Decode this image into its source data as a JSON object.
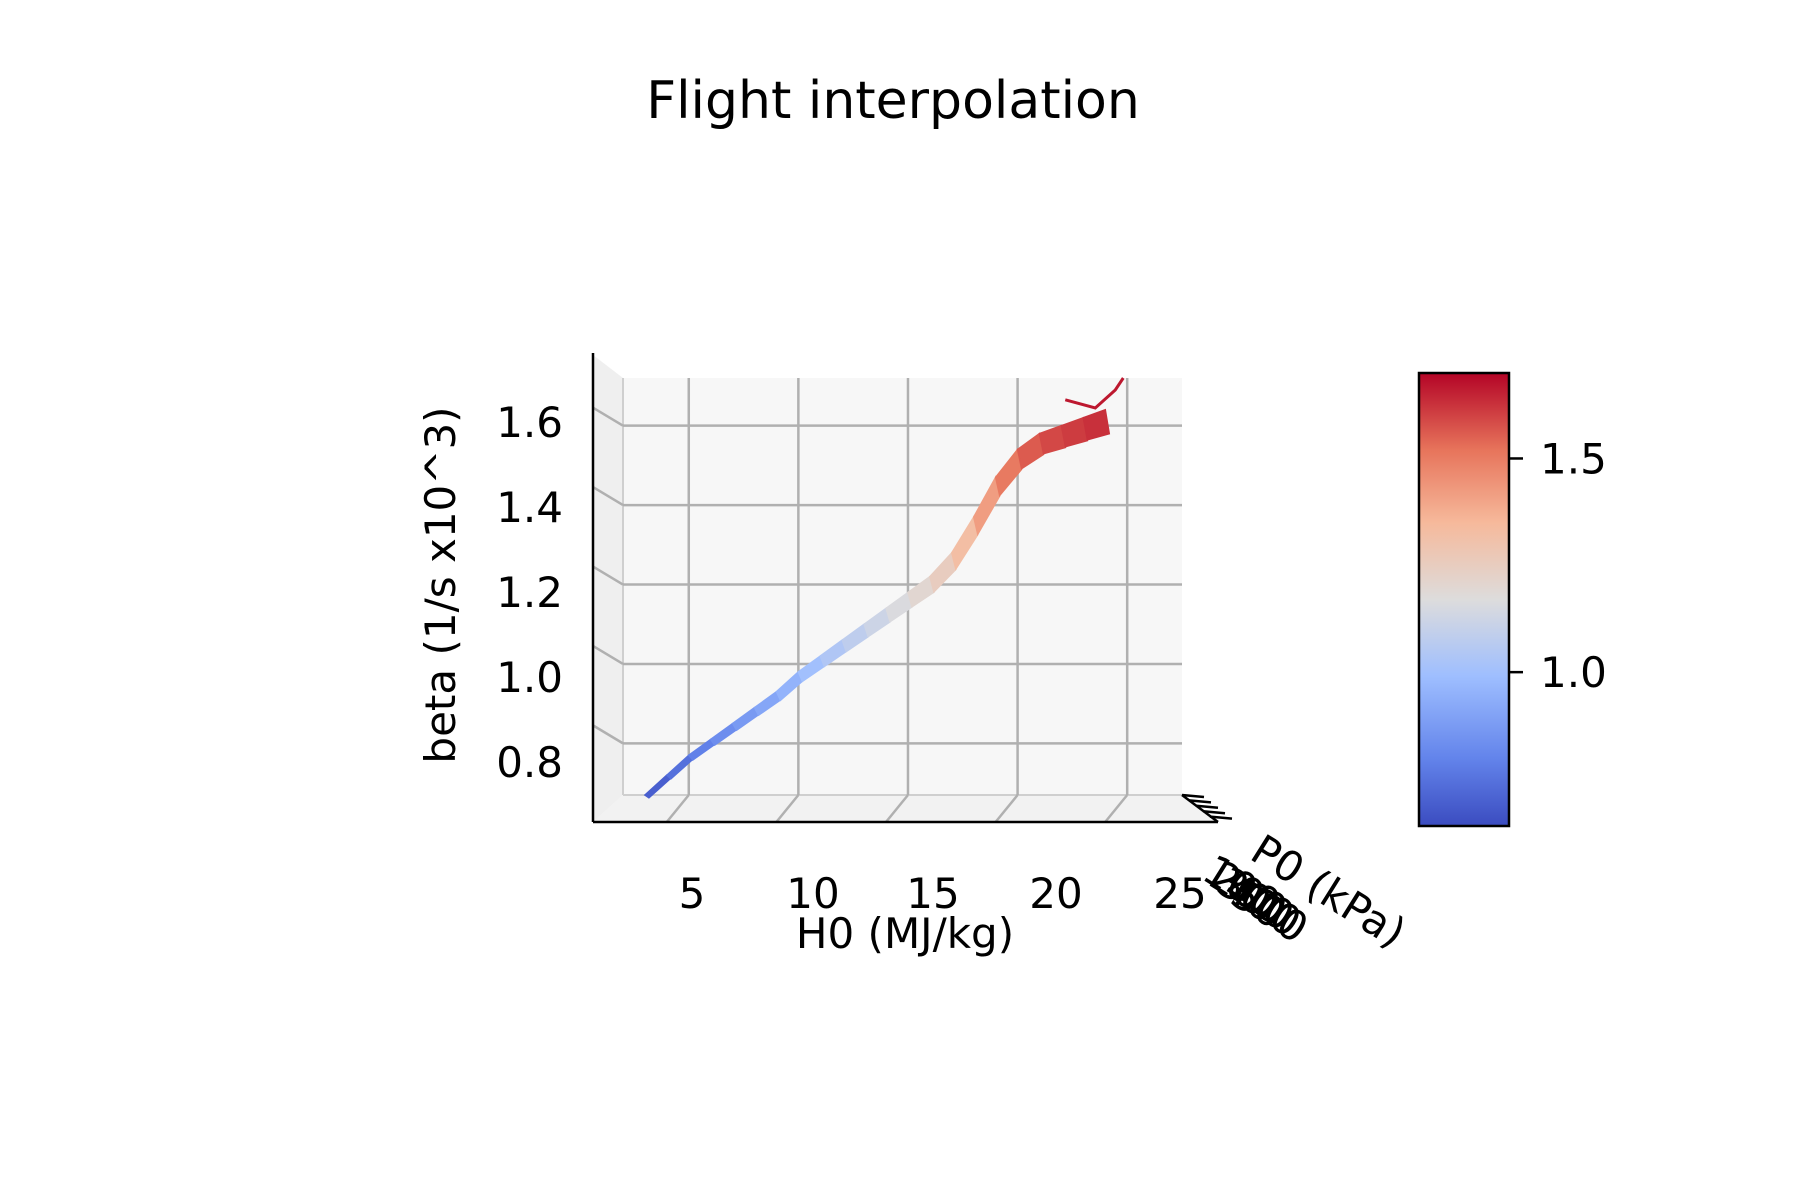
{
  "chart_data": {
    "type": "surface",
    "title": "Flight interpolation",
    "xlabel": "H0 (MJ/kg)",
    "ylabel": "P0 (kPa)",
    "zlabel": "beta (1/s x10^3)",
    "x_ticks": [
      "5",
      "10",
      "15",
      "20",
      "25"
    ],
    "y_ticks": [
      "100",
      "200",
      "300",
      "400",
      "500"
    ],
    "z_ticks": [
      "0.8",
      "1.0",
      "1.2",
      "1.4",
      "1.6"
    ],
    "xlim": [
      2,
      27.5
    ],
    "zlim": [
      0.67,
      1.72
    ],
    "grid": true,
    "colormap": "coolwarm",
    "colorbar": {
      "range": [
        0.64,
        1.7
      ],
      "ticks": [
        "1.0",
        "1.5"
      ],
      "tick_values": [
        1.0,
        1.5
      ]
    },
    "surface_profile": {
      "H0": [
        3.0,
        4.0,
        5.0,
        6.0,
        7.0,
        8.0,
        9.0,
        10.0,
        11.0,
        12.0,
        13.0,
        14.0,
        15.0,
        16.0,
        17.0,
        18.0,
        19.0,
        20.0,
        21.0,
        22.0,
        23.0,
        24.0
      ],
      "beta": [
        0.67,
        0.72,
        0.77,
        0.81,
        0.85,
        0.89,
        0.93,
        0.98,
        1.02,
        1.06,
        1.1,
        1.14,
        1.18,
        1.22,
        1.28,
        1.37,
        1.47,
        1.54,
        1.58,
        1.6,
        1.62,
        1.64
      ]
    }
  }
}
